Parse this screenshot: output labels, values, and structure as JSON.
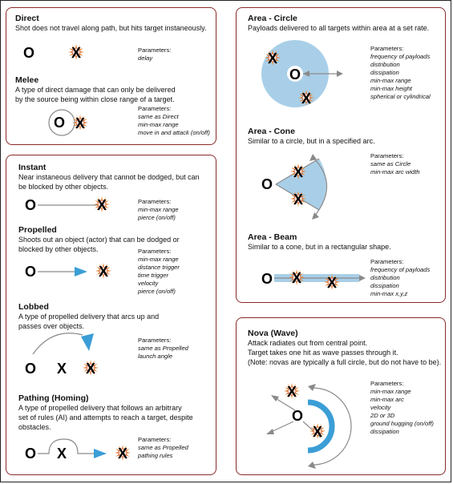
{
  "sections": {
    "direct": {
      "title": "Direct",
      "desc": [
        "Shot does not travel along path, but hits target instaneously."
      ],
      "params_header": "Parameters:",
      "params": [
        "delay"
      ]
    },
    "melee": {
      "title": "Melee",
      "desc": [
        "A type of direct damage that can only be delivered",
        "by the source being within close range of a target."
      ],
      "params_header": "Parameters:",
      "params": [
        "same as Direct",
        "min-max range",
        "move in and attack (on/off)"
      ]
    },
    "instant": {
      "title": "Instant",
      "desc": [
        "Near instaneous delivery that cannot be dodged, but can",
        "be blocked by other objects."
      ],
      "params_header": "Parameters:",
      "params": [
        "min-max range",
        "pierce (on/off)"
      ]
    },
    "propelled": {
      "title": "Propelled",
      "desc": [
        "Shoots out an object (actor) that can be dodged or",
        "blocked by other objects."
      ],
      "params_header": "Parameters:",
      "params": [
        "min-max range",
        "distance trigger",
        "time trigger",
        "velocity",
        "pierce (on/off)"
      ]
    },
    "lobbed": {
      "title": "Lobbed",
      "desc": [
        "A type of propelled delivery that arcs up and",
        "passes over objects."
      ],
      "params_header": "Parameters:",
      "params": [
        "same as Propelled",
        "launch angle"
      ]
    },
    "pathing": {
      "title": "Pathing (Homing)",
      "desc": [
        "A type of propelled delivery that follows an arbitrary",
        "set of rules (AI) and attempts to reach a target, despite",
        "obstacles."
      ],
      "params_header": "Parameters:",
      "params": [
        "same as Propelled",
        "pathing rules"
      ]
    },
    "area_circle": {
      "title": "Area - Circle",
      "desc": [
        "Payloads delivered to all targets within area at a set rate."
      ],
      "params_header": "Parameters:",
      "params": [
        "frequency of payloads",
        "distribution",
        "dissipation",
        "min-max range",
        "min-max height",
        "spherical or cylindrical"
      ]
    },
    "area_cone": {
      "title": "Area - Cone",
      "desc": [
        "Similar to a circle, but in a specified arc."
      ],
      "params_header": "Parameters:",
      "params": [
        "same as Circle",
        "min-max arc width"
      ]
    },
    "area_beam": {
      "title": "Area - Beam",
      "desc": [
        "Similar to a cone, but in a rectangular shape."
      ],
      "params_header": "Parameters:",
      "params": [
        "frequency of payloads",
        "distribution",
        "dissipation",
        "min-max x,y,z"
      ]
    },
    "nova": {
      "title": "Nova (Wave)",
      "desc": [
        "Attack radiates out from central point.",
        "Target takes one hit as wave passes through it.",
        "(Note: novas are typically a full circle, but do not have to be)."
      ],
      "params_header": "Parameters:",
      "params": [
        "min-max range",
        "min-max arc",
        "velocity",
        "2D or 3D",
        "ground hugging (on/off)",
        "dissipation"
      ]
    }
  },
  "glyphs": {
    "source": "O",
    "target": "X"
  },
  "colors": {
    "border": "#8b2a2a",
    "accent_blue": "#3b9ed6",
    "area_blue": "#a9cfe8",
    "burst_orange": "#e8893a",
    "burst_red": "#c0392b",
    "arrow_gray": "#8a8a8a"
  }
}
